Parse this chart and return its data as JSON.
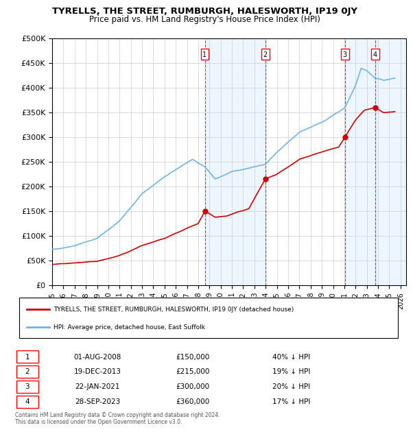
{
  "title": "TYRELLS, THE STREET, RUMBURGH, HALESWORTH, IP19 0JY",
  "subtitle": "Price paid vs. HM Land Registry's House Price Index (HPI)",
  "ylabel": "",
  "ylim": [
    0,
    500000
  ],
  "yticks": [
    0,
    50000,
    100000,
    150000,
    200000,
    250000,
    300000,
    350000,
    400000,
    450000,
    500000
  ],
  "ytick_labels": [
    "£0",
    "£50K",
    "£100K",
    "£150K",
    "£200K",
    "£250K",
    "£300K",
    "£350K",
    "£400K",
    "£450K",
    "£500K"
  ],
  "xlim_start": 1995.0,
  "xlim_end": 2026.5,
  "transactions": [
    {
      "num": 1,
      "date": "01-AUG-2008",
      "date_x": 2008.583,
      "price": 150000,
      "pct": "40%",
      "direction": "↓"
    },
    {
      "num": 2,
      "date": "19-DEC-2013",
      "date_x": 2013.963,
      "price": 215000,
      "pct": "19%",
      "direction": "↓"
    },
    {
      "num": 3,
      "date": "22-JAN-2021",
      "date_x": 2021.056,
      "price": 300000,
      "pct": "20%",
      "direction": "↓"
    },
    {
      "num": 4,
      "date": "28-SEP-2023",
      "date_x": 2023.742,
      "price": 360000,
      "pct": "17%",
      "direction": "↓"
    }
  ],
  "hpi_color": "#6eb4e8",
  "price_color": "#cc0000",
  "vline_color": "#cc0000",
  "shade_color": "#ddeeff",
  "legend_label_price": "TYRELLS, THE STREET, RUMBURGH, HALESWORTH, IP19 0JY (detached house)",
  "legend_label_hpi": "HPI: Average price, detached house, East Suffolk",
  "footer": "Contains HM Land Registry data © Crown copyright and database right 2024.\nThis data is licensed under the Open Government Licence v3.0.",
  "background_color": "#ffffff",
  "grid_color": "#cccccc"
}
